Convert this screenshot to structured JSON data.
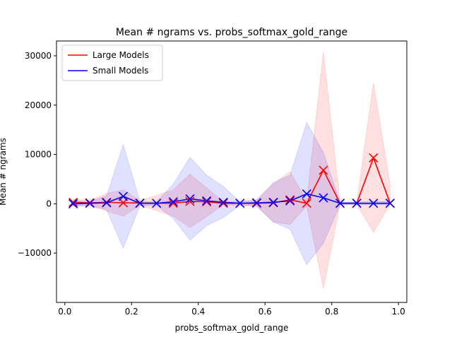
{
  "chart_data": {
    "type": "line",
    "title": "Mean # ngrams vs. probs_softmax_gold_range",
    "xlabel": "probs_softmax_gold_range",
    "ylabel": "Mean # ngrams",
    "xlim": [
      -0.025,
      1.025
    ],
    "ylim": [
      -20000,
      33000
    ],
    "x_ticks": [
      0.0,
      0.2,
      0.4,
      0.6,
      0.8,
      1.0
    ],
    "x_tick_labels": [
      "0.0",
      "0.2",
      "0.4",
      "0.6",
      "0.8",
      "1.0"
    ],
    "y_ticks": [
      -10000,
      0,
      10000,
      20000,
      30000
    ],
    "y_tick_labels": [
      "−10000",
      "0",
      "10000",
      "20000",
      "30000"
    ],
    "grid": false,
    "legend_position": "top-left",
    "series": [
      {
        "name": "Large Models",
        "color": "#ff0000",
        "band_color": "#ff0000",
        "x": [
          0.025,
          0.075,
          0.125,
          0.175,
          0.225,
          0.325,
          0.375,
          0.425,
          0.475,
          0.575,
          0.625,
          0.675,
          0.725,
          0.775,
          0.825,
          0.875,
          0.925,
          0.975
        ],
        "values": [
          300,
          200,
          300,
          200,
          150,
          100,
          500,
          400,
          100,
          100,
          200,
          800,
          100,
          6800,
          100,
          100,
          9300,
          100
        ],
        "lower": [
          -400,
          -300,
          -1500,
          -2500,
          -300,
          -2500,
          -4800,
          -2600,
          -200,
          -400,
          -3700,
          -4200,
          -400,
          -17200,
          -100,
          -100,
          -5800,
          -100
        ],
        "upper": [
          900,
          700,
          2100,
          2800,
          600,
          2800,
          6000,
          3200,
          400,
          700,
          4000,
          6500,
          700,
          30800,
          300,
          300,
          24500,
          3900
        ]
      },
      {
        "name": "Small Models",
        "color": "#0000ff",
        "band_color": "#0000ff",
        "x": [
          0.025,
          0.075,
          0.125,
          0.175,
          0.225,
          0.275,
          0.325,
          0.375,
          0.425,
          0.475,
          0.525,
          0.575,
          0.625,
          0.675,
          0.725,
          0.775,
          0.825,
          0.875,
          0.925,
          0.975
        ],
        "values": [
          0,
          100,
          200,
          1500,
          100,
          100,
          400,
          1000,
          600,
          300,
          100,
          200,
          300,
          600,
          2000,
          1200,
          100,
          100,
          100,
          100
        ],
        "lower": [
          -500,
          -400,
          -1200,
          -9000,
          -400,
          -300,
          -3000,
          -7400,
          -4400,
          -2800,
          -300,
          -500,
          -3700,
          -5200,
          -12400,
          -8000,
          -200,
          -200,
          -200,
          -200
        ],
        "upper": [
          600,
          500,
          1600,
          12000,
          500,
          400,
          4000,
          9400,
          5800,
          3500,
          400,
          800,
          4300,
          5800,
          16500,
          10400,
          300,
          300,
          500,
          400
        ]
      }
    ]
  }
}
